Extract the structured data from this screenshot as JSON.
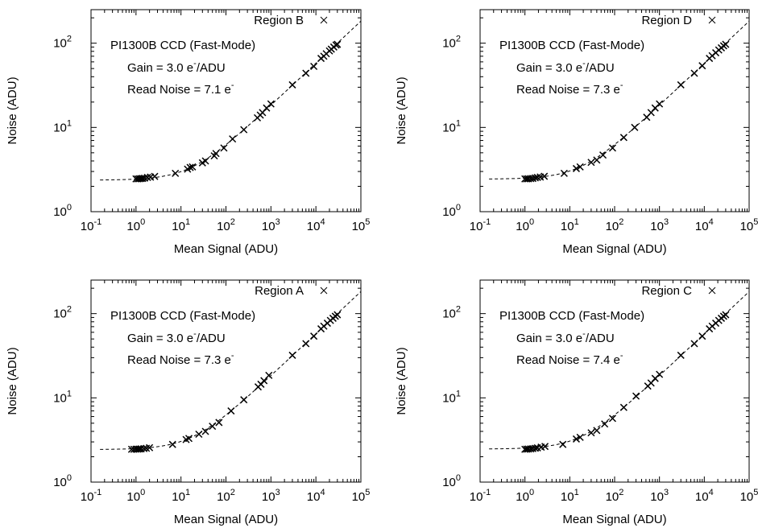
{
  "chart_data": [
    {
      "type": "scatter",
      "legend": "Region B",
      "annotation": {
        "camera": "PI1300B CCD (Fast-Mode)",
        "gain": "Gain = 3.0 e",
        "gain_unit": "/ADU",
        "read_noise": "Read Noise = 7.1 e"
      },
      "xlabel": "Mean Signal (ADU)",
      "ylabel": "Noise (ADU)",
      "x_scale": "log",
      "y_scale": "log",
      "xlim": [
        0.1,
        100000
      ],
      "ylim": [
        1,
        250
      ],
      "model": {
        "gain": 3.0,
        "read_noise": 7.1
      },
      "points": [
        [
          1.0,
          2.45
        ],
        [
          1.1,
          2.45
        ],
        [
          1.2,
          2.46
        ],
        [
          1.3,
          2.47
        ],
        [
          1.4,
          2.48
        ],
        [
          1.55,
          2.5
        ],
        [
          1.8,
          2.55
        ],
        [
          2.1,
          2.57
        ],
        [
          2.6,
          2.62
        ],
        [
          7.5,
          2.85
        ],
        [
          14,
          3.2
        ],
        [
          16,
          3.35
        ],
        [
          18,
          3.4
        ],
        [
          30,
          3.8
        ],
        [
          35,
          4.0
        ],
        [
          55,
          4.6
        ],
        [
          60,
          4.9
        ],
        [
          90,
          5.7
        ],
        [
          140,
          7.3
        ],
        [
          250,
          9.4
        ],
        [
          500,
          13
        ],
        [
          580,
          14
        ],
        [
          650,
          15
        ],
        [
          800,
          17
        ],
        [
          1000,
          19
        ],
        [
          3000,
          32
        ],
        [
          6000,
          44
        ],
        [
          9000,
          53
        ],
        [
          13000,
          66
        ],
        [
          15000,
          70
        ],
        [
          17000,
          75
        ],
        [
          20000,
          81
        ],
        [
          22000,
          85
        ],
        [
          25000,
          90
        ],
        [
          28000,
          95
        ],
        [
          30000,
          97
        ]
      ]
    },
    {
      "type": "scatter",
      "legend": "Region D",
      "annotation": {
        "camera": "PI1300B CCD (Fast-Mode)",
        "gain": "Gain = 3.0 e",
        "gain_unit": "/ADU",
        "read_noise": "Read Noise = 7.3 e"
      },
      "xlabel": "Mean Signal (ADU)",
      "ylabel": "Noise (ADU)",
      "x_scale": "log",
      "y_scale": "log",
      "xlim": [
        0.1,
        100000
      ],
      "ylim": [
        1,
        250
      ],
      "model": {
        "gain": 3.0,
        "read_noise": 7.3
      },
      "points": [
        [
          1.0,
          2.45
        ],
        [
          1.1,
          2.45
        ],
        [
          1.2,
          2.46
        ],
        [
          1.35,
          2.47
        ],
        [
          1.5,
          2.48
        ],
        [
          1.7,
          2.52
        ],
        [
          1.9,
          2.55
        ],
        [
          2.2,
          2.58
        ],
        [
          2.7,
          2.63
        ],
        [
          7.5,
          2.85
        ],
        [
          14,
          3.25
        ],
        [
          17,
          3.4
        ],
        [
          30,
          3.85
        ],
        [
          40,
          4.1
        ],
        [
          55,
          4.7
        ],
        [
          90,
          5.7
        ],
        [
          160,
          7.6
        ],
        [
          280,
          10
        ],
        [
          520,
          13.2
        ],
        [
          650,
          15
        ],
        [
          800,
          17
        ],
        [
          1000,
          19
        ],
        [
          3000,
          32
        ],
        [
          6000,
          44
        ],
        [
          9000,
          54
        ],
        [
          13000,
          66
        ],
        [
          15000,
          71
        ],
        [
          18000,
          77
        ],
        [
          21000,
          83
        ],
        [
          24000,
          88
        ],
        [
          27000,
          93
        ],
        [
          30000,
          97
        ]
      ]
    },
    {
      "type": "scatter",
      "legend": "Region A",
      "annotation": {
        "camera": "PI1300B CCD (Fast-Mode)",
        "gain": "Gain = 3.0 e",
        "gain_unit": "/ADU",
        "read_noise": "Read Noise = 7.3 e"
      },
      "xlabel": "Mean Signal (ADU)",
      "ylabel": "Noise (ADU)",
      "x_scale": "log",
      "y_scale": "log",
      "xlim": [
        0.1,
        100000
      ],
      "ylim": [
        1,
        250
      ],
      "model": {
        "gain": 3.0,
        "read_noise": 7.3
      },
      "points": [
        [
          0.8,
          2.45
        ],
        [
          0.9,
          2.45
        ],
        [
          1.0,
          2.46
        ],
        [
          1.1,
          2.46
        ],
        [
          1.2,
          2.47
        ],
        [
          1.3,
          2.48
        ],
        [
          1.5,
          2.5
        ],
        [
          1.7,
          2.52
        ],
        [
          2.0,
          2.56
        ],
        [
          6.5,
          2.8
        ],
        [
          13,
          3.2
        ],
        [
          15,
          3.3
        ],
        [
          25,
          3.7
        ],
        [
          35,
          4.0
        ],
        [
          50,
          4.6
        ],
        [
          70,
          5.1
        ],
        [
          130,
          7.0
        ],
        [
          250,
          9.5
        ],
        [
          520,
          13.5
        ],
        [
          600,
          14.5
        ],
        [
          700,
          16
        ],
        [
          900,
          18.5
        ],
        [
          3000,
          32
        ],
        [
          6000,
          44
        ],
        [
          9000,
          54
        ],
        [
          13000,
          66
        ],
        [
          15000,
          71
        ],
        [
          18000,
          77
        ],
        [
          21000,
          83
        ],
        [
          24000,
          88
        ],
        [
          27000,
          93
        ],
        [
          30000,
          97
        ]
      ]
    },
    {
      "type": "scatter",
      "legend": "Region C",
      "annotation": {
        "camera": "PI1300B CCD (Fast-Mode)",
        "gain": "Gain = 3.0 e",
        "gain_unit": "/ADU",
        "read_noise": "Read Noise = 7.4 e"
      },
      "xlabel": "Mean Signal (ADU)",
      "ylabel": "Noise (ADU)",
      "x_scale": "log",
      "y_scale": "log",
      "xlim": [
        0.1,
        100000
      ],
      "ylim": [
        1,
        250
      ],
      "model": {
        "gain": 3.0,
        "read_noise": 7.4
      },
      "points": [
        [
          1.0,
          2.45
        ],
        [
          1.1,
          2.46
        ],
        [
          1.2,
          2.47
        ],
        [
          1.35,
          2.48
        ],
        [
          1.5,
          2.5
        ],
        [
          1.7,
          2.52
        ],
        [
          1.9,
          2.55
        ],
        [
          2.3,
          2.6
        ],
        [
          2.8,
          2.65
        ],
        [
          7.0,
          2.8
        ],
        [
          14,
          3.25
        ],
        [
          17,
          3.4
        ],
        [
          30,
          3.85
        ],
        [
          40,
          4.1
        ],
        [
          60,
          4.9
        ],
        [
          90,
          5.7
        ],
        [
          160,
          7.7
        ],
        [
          300,
          10.5
        ],
        [
          550,
          13.8
        ],
        [
          650,
          15
        ],
        [
          800,
          17
        ],
        [
          1000,
          19
        ],
        [
          3000,
          32
        ],
        [
          6000,
          44
        ],
        [
          9000,
          54
        ],
        [
          13000,
          66
        ],
        [
          15000,
          71
        ],
        [
          18000,
          77
        ],
        [
          21000,
          83
        ],
        [
          24000,
          88
        ],
        [
          27000,
          93
        ],
        [
          30000,
          97
        ]
      ]
    }
  ]
}
